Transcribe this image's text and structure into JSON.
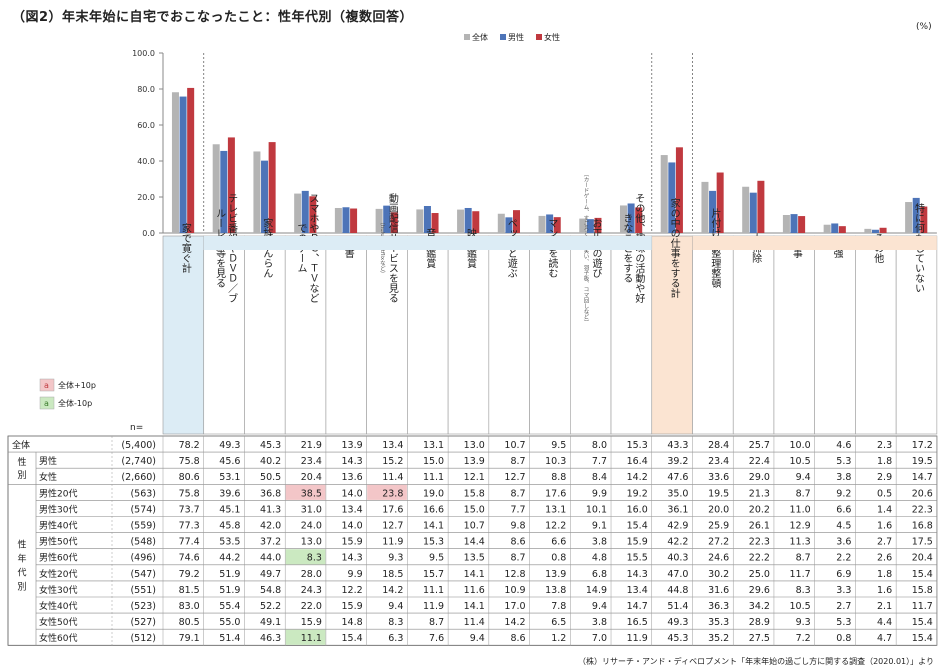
{
  "title": "（図2）年末年始に自宅でおこなったこと：性年代別（複数回答）",
  "unit": "(%)",
  "source": "（株）リサーチ・アンド・ディベロプメント「年末年始の過ごし方に関する調査（2020.01）」より",
  "legend_key": {
    "high_label": "全体+10p",
    "low_label": "全体-10p",
    "sample": "a"
  },
  "n_header": "n=",
  "chart_data": {
    "type": "bar",
    "ylim": [
      0,
      100
    ],
    "yticks": [
      "0.0",
      "20.0",
      "40.0",
      "60.0",
      "80.0",
      "100.0"
    ],
    "legend_position": "top",
    "colors": {
      "all": "#b4b4b4",
      "male": "#4d74b8",
      "female": "#c0393f",
      "high_bg": "#f3c6c8",
      "low_bg": "#cbe9c1",
      "head_blue": "#dcecf5",
      "head_orange": "#fbe4d2"
    },
    "categories": [
      "家で寛ぐ計",
      "テレビ番組やＤＶＤ／ブルーレイ等を見る",
      "家族だんらん",
      "スマホやＰＣ、ＴＶなどでのゲーム",
      "読書",
      "動画配信サービスを見る",
      "音楽鑑賞",
      "映画鑑賞",
      "ペットと遊ぶ",
      "マンガを読む",
      "お正月の遊び",
      "その他、趣味の活動や好きなことをする",
      "家の中の仕事をする計",
      "片付け・整理整頓",
      "大掃除",
      "仕事",
      "勉強",
      "その他",
      "特に何もしていない"
    ],
    "category_notes": [
      "",
      "",
      "",
      "",
      "",
      "（hulu、Netflixなど）",
      "",
      "",
      "",
      "",
      "（カードゲーム、すごろく、福笑い、羽子板、コマ回しなど）",
      "",
      "",
      "",
      "",
      "",
      "",
      "",
      ""
    ],
    "series": [
      {
        "name": "全体",
        "values": [
          78.2,
          49.3,
          45.3,
          21.9,
          13.9,
          13.4,
          13.1,
          13.0,
          10.7,
          9.5,
          8.0,
          15.3,
          43.3,
          28.4,
          25.7,
          10.0,
          4.6,
          2.3,
          17.2
        ]
      },
      {
        "name": "男性",
        "values": [
          75.8,
          45.6,
          40.2,
          23.4,
          14.3,
          15.2,
          15.0,
          13.9,
          8.7,
          10.3,
          7.7,
          16.4,
          39.2,
          23.4,
          22.4,
          10.5,
          5.3,
          1.8,
          19.5
        ]
      },
      {
        "name": "女性",
        "values": [
          80.6,
          53.1,
          50.5,
          20.4,
          13.6,
          11.4,
          11.1,
          12.1,
          12.7,
          8.8,
          8.4,
          14.2,
          47.6,
          33.6,
          29.0,
          9.4,
          3.8,
          2.9,
          14.7
        ]
      }
    ],
    "table": {
      "groups": [
        {
          "label": "全体",
          "rows": [
            {
              "label": "",
              "n": "(5,400)",
              "values": [
                "78.2",
                "49.3",
                "45.3",
                "21.9",
                "13.9",
                "13.4",
                "13.1",
                "13.0",
                "10.7",
                "9.5",
                "8.0",
                "15.3",
                "43.3",
                "28.4",
                "25.7",
                "10.0",
                "4.6",
                "2.3",
                "17.2"
              ]
            }
          ]
        },
        {
          "label": "性別",
          "rows": [
            {
              "label": "男性",
              "n": "(2,740)",
              "values": [
                "75.8",
                "45.6",
                "40.2",
                "23.4",
                "14.3",
                "15.2",
                "15.0",
                "13.9",
                "8.7",
                "10.3",
                "7.7",
                "16.4",
                "39.2",
                "23.4",
                "22.4",
                "10.5",
                "5.3",
                "1.8",
                "19.5"
              ]
            },
            {
              "label": "女性",
              "n": "(2,660)",
              "values": [
                "80.6",
                "53.1",
                "50.5",
                "20.4",
                "13.6",
                "11.4",
                "11.1",
                "12.1",
                "12.7",
                "8.8",
                "8.4",
                "14.2",
                "47.6",
                "33.6",
                "29.0",
                "9.4",
                "3.8",
                "2.9",
                "14.7"
              ]
            }
          ]
        },
        {
          "label": "性年代別",
          "rows": [
            {
              "label": "男性20代",
              "n": "(563)",
              "values": [
                "75.8",
                "39.6",
                "36.8",
                "38.5",
                "14.0",
                "23.8",
                "19.0",
                "15.8",
                "8.7",
                "17.6",
                "9.9",
                "19.2",
                "35.0",
                "19.5",
                "21.3",
                "8.7",
                "9.2",
                "0.5",
                "20.6"
              ]
            },
            {
              "label": "男性30代",
              "n": "(574)",
              "values": [
                "73.7",
                "45.1",
                "41.3",
                "31.0",
                "13.4",
                "17.6",
                "16.6",
                "15.0",
                "7.7",
                "13.1",
                "10.1",
                "16.0",
                "36.1",
                "20.0",
                "20.2",
                "11.0",
                "6.6",
                "1.4",
                "22.3"
              ]
            },
            {
              "label": "男性40代",
              "n": "(559)",
              "values": [
                "77.3",
                "45.8",
                "42.0",
                "24.0",
                "14.0",
                "12.7",
                "14.1",
                "10.7",
                "9.8",
                "12.2",
                "9.1",
                "15.4",
                "42.9",
                "25.9",
                "26.1",
                "12.9",
                "4.5",
                "1.6",
                "16.8"
              ]
            },
            {
              "label": "男性50代",
              "n": "(548)",
              "values": [
                "77.4",
                "53.5",
                "37.2",
                "13.0",
                "15.9",
                "11.9",
                "15.3",
                "14.4",
                "8.6",
                "6.6",
                "3.8",
                "15.9",
                "42.2",
                "27.2",
                "22.3",
                "11.3",
                "3.6",
                "2.7",
                "17.5"
              ]
            },
            {
              "label": "男性60代",
              "n": "(496)",
              "values": [
                "74.6",
                "44.2",
                "44.0",
                "8.3",
                "14.3",
                "9.3",
                "9.5",
                "13.5",
                "8.7",
                "0.8",
                "4.8",
                "15.5",
                "40.3",
                "24.6",
                "22.2",
                "8.7",
                "2.2",
                "2.6",
                "20.4"
              ]
            },
            {
              "label": "女性20代",
              "n": "(547)",
              "values": [
                "79.2",
                "51.9",
                "49.7",
                "28.0",
                "9.9",
                "18.5",
                "15.7",
                "14.1",
                "12.8",
                "13.9",
                "6.8",
                "14.3",
                "47.0",
                "30.2",
                "25.0",
                "11.7",
                "6.9",
                "1.8",
                "15.4"
              ]
            },
            {
              "label": "女性30代",
              "n": "(551)",
              "values": [
                "81.5",
                "51.9",
                "54.8",
                "24.3",
                "12.2",
                "14.2",
                "11.1",
                "11.6",
                "10.9",
                "13.8",
                "14.9",
                "13.4",
                "44.8",
                "31.6",
                "29.6",
                "8.3",
                "3.3",
                "1.6",
                "15.8"
              ]
            },
            {
              "label": "女性40代",
              "n": "(523)",
              "values": [
                "83.0",
                "55.4",
                "52.2",
                "22.0",
                "15.9",
                "9.4",
                "11.9",
                "14.1",
                "17.0",
                "7.8",
                "9.4",
                "14.7",
                "51.4",
                "36.3",
                "34.2",
                "10.5",
                "2.7",
                "2.1",
                "11.7"
              ]
            },
            {
              "label": "女性50代",
              "n": "(527)",
              "values": [
                "80.5",
                "55.0",
                "49.1",
                "15.9",
                "14.8",
                "8.3",
                "8.7",
                "11.4",
                "14.2",
                "6.5",
                "3.8",
                "16.5",
                "49.3",
                "35.3",
                "28.9",
                "9.3",
                "5.3",
                "4.4",
                "15.4"
              ]
            },
            {
              "label": "女性60代",
              "n": "(512)",
              "values": [
                "79.1",
                "51.4",
                "46.3",
                "11.1",
                "15.4",
                "6.3",
                "7.6",
                "9.4",
                "8.6",
                "1.2",
                "7.0",
                "11.9",
                "45.3",
                "35.2",
                "27.5",
                "7.2",
                "0.8",
                "4.7",
                "15.4"
              ]
            }
          ]
        }
      ],
      "highlights": {
        "high": [
          [
            3,
            3
          ],
          [
            3,
            5
          ]
        ],
        "low": [
          [
            7,
            3
          ],
          [
            12,
            3
          ]
        ]
      }
    }
  }
}
